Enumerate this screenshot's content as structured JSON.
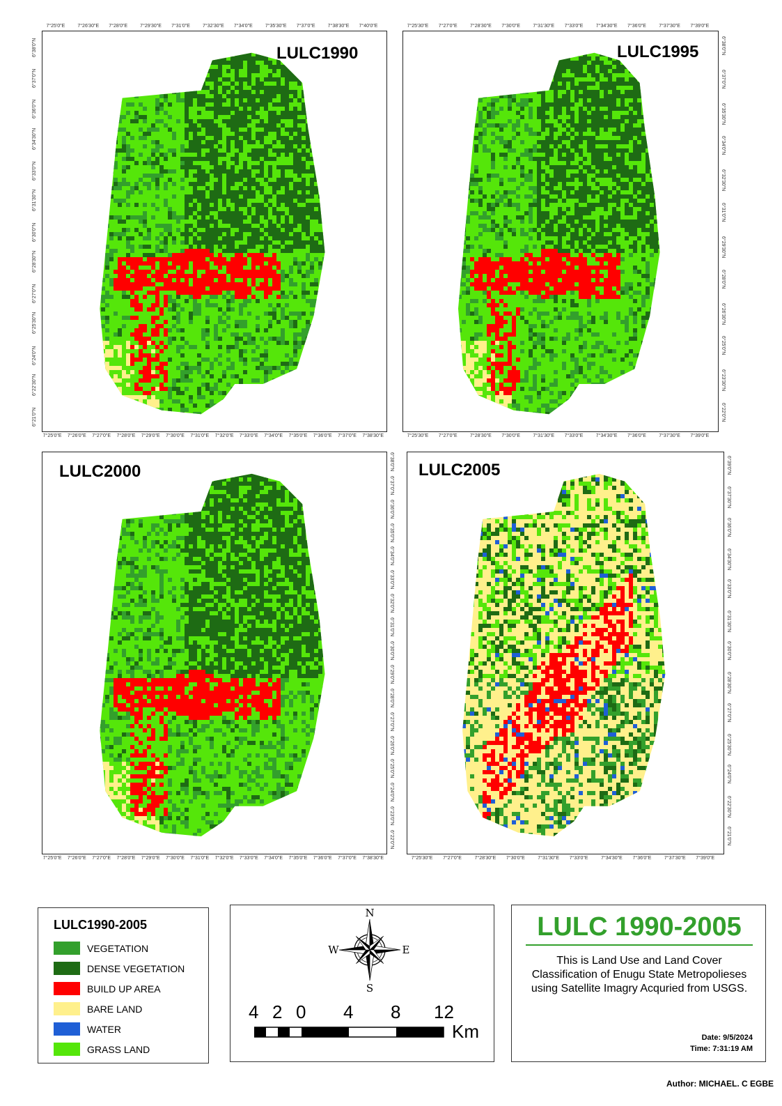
{
  "maps": [
    {
      "title": "LULC1990",
      "top_ticks": [
        "7°25'0\"E",
        "7°26'30\"E",
        "7°28'0\"E",
        "7°29'30\"E",
        "7°31'0\"E",
        "7°32'30\"E",
        "7°34'0\"E",
        "7°35'30\"E",
        "7°37'0\"E",
        "7°38'30\"E",
        "7°40'0\"E"
      ],
      "bottom_ticks": [
        "7°25'0\"E",
        "7°26'0\"E",
        "7°27'0\"E",
        "7°28'0\"E",
        "7°29'0\"E",
        "7°30'0\"E",
        "7°31'0\"E",
        "7°32'0\"E",
        "7°33'0\"E",
        "7°34'0\"E",
        "7°35'0\"E",
        "7°36'0\"E",
        "7°37'0\"E",
        "7°38'30\"E"
      ],
      "left_ticks": [
        "6°38'0\"N",
        "6°37'0\"N",
        "6°36'0\"N",
        "6°34'30\"N",
        "6°33'0\"N",
        "6°31'30\"N",
        "6°30'0\"N",
        "6°28'30\"N",
        "6°27'0\"N",
        "6°25'30\"N",
        "6°24'0\"N",
        "6°22'30\"N",
        "6°21'0\"N"
      ]
    },
    {
      "title": "LULC1995",
      "top_ticks": [
        "7°25'30\"E",
        "7°27'0\"E",
        "7°28'30\"E",
        "7°30'0\"E",
        "7°31'30\"E",
        "7°33'0\"E",
        "7°34'30\"E",
        "7°36'0\"E",
        "7°37'30\"E",
        "7°39'0\"E"
      ],
      "bottom_ticks": [
        "7°25'30\"E",
        "7°27'0\"E",
        "7°28'30\"E",
        "7°30'0\"E",
        "7°31'30\"E",
        "7°33'0\"E",
        "7°34'30\"E",
        "7°36'0\"E",
        "7°37'30\"E",
        "7°39'0\"E"
      ],
      "right_ticks": [
        "6°38'0\"N",
        "6°37'0\"N",
        "6°35'30\"N",
        "6°34'0\"N",
        "6°32'30\"N",
        "6°31'0\"N",
        "6°29'30\"N",
        "6°28'0\"N",
        "6°26'30\"N",
        "6°25'0\"N",
        "6°23'30\"N",
        "6°22'0\"N"
      ]
    },
    {
      "title": "LULC2000",
      "bottom_ticks": [
        "7°25'0\"E",
        "7°26'0\"E",
        "7°27'0\"E",
        "7°28'0\"E",
        "7°29'0\"E",
        "7°30'0\"E",
        "7°31'0\"E",
        "7°32'0\"E",
        "7°33'0\"E",
        "7°34'0\"E",
        "7°35'0\"E",
        "7°36'0\"E",
        "7°37'0\"E",
        "7°38'30\"E"
      ],
      "right_ticks": [
        "6°38'0\"N",
        "6°37'0\"N",
        "6°36'0\"N",
        "6°35'0\"N",
        "6°34'0\"N",
        "6°33'0\"N",
        "6°32'0\"N",
        "6°31'0\"N",
        "6°30'0\"N",
        "6°29'0\"N",
        "6°28'0\"N",
        "6°27'0\"N",
        "6°26'0\"N",
        "6°25'0\"N",
        "6°24'0\"N",
        "6°23'0\"N",
        "6°22'0\"N"
      ]
    },
    {
      "title": "LULC2005",
      "bottom_ticks": [
        "7°25'30\"E",
        "7°27'0\"E",
        "7°28'30\"E",
        "7°30'0\"E",
        "7°31'30\"E",
        "7°33'0\"E",
        "7°34'30\"E",
        "7°36'0\"E",
        "7°37'30\"E",
        "7°39'0\"E"
      ],
      "right_ticks": [
        "6°39'0\"N",
        "6°37'30\"N",
        "6°36'0\"N",
        "6°34'30\"N",
        "6°33'0\"N",
        "6°31'30\"N",
        "6°30'0\"N",
        "6°28'30\"N",
        "6°27'0\"N",
        "6°25'30\"N",
        "6°24'0\"N",
        "6°22'30\"N",
        "6°21'0\"N"
      ]
    }
  ],
  "legend": {
    "title": "LULC1990-2005",
    "items": [
      {
        "label": "VEGETATION",
        "color": "#33a02c"
      },
      {
        "label": "DENSE VEGETATION",
        "color": "#1e6b14"
      },
      {
        "label": "BUILD UP AREA",
        "color": "#ff0000"
      },
      {
        "label": "BARE LAND",
        "color": "#fff08c"
      },
      {
        "label": "WATER",
        "color": "#1f5fd6"
      },
      {
        "label": "GRASS LAND",
        "color": "#55e60a"
      }
    ]
  },
  "compass": {
    "n": "N",
    "s": "S",
    "e": "E",
    "w": "W"
  },
  "scale": {
    "labels": [
      "4",
      "2",
      "0",
      "4",
      "8",
      "12"
    ],
    "unit": "Km"
  },
  "info": {
    "title": "LULC 1990-2005",
    "description": "This is Land Use and Land Cover Classification of Enugu State Metropolieses using Satellite Imagry Acquried from USGS.",
    "date": "Date: 9/5/2024",
    "time": "Time: 7:31:19 AM",
    "author": "Author: MICHAEL. C EGBE"
  },
  "colors": {
    "vegetation": "#33a02c",
    "dense": "#1e6b14",
    "buildup": "#ff0000",
    "bare": "#fff08c",
    "water": "#1f5fd6",
    "grass": "#55e60a"
  }
}
